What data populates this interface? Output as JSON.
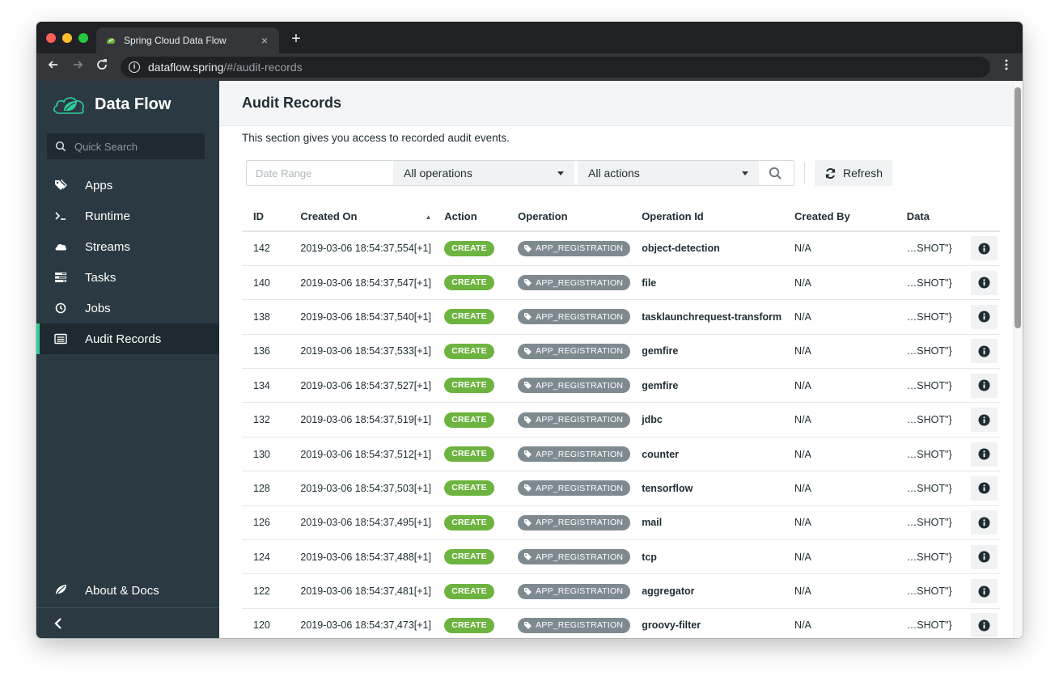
{
  "browser": {
    "tab_title": "Spring Cloud Data Flow",
    "tab_close": "×",
    "new_tab": "+",
    "url_host": "dataflow.spring",
    "url_path": "/#/audit-records",
    "icons": {
      "back": "arrow-left",
      "forward": "arrow-right",
      "reload": "reload",
      "info": "info",
      "menu": "kebab"
    }
  },
  "sidebar": {
    "brand": "Data Flow",
    "search_placeholder": "Quick Search",
    "items": [
      {
        "label": "Apps",
        "icon": "tags-icon"
      },
      {
        "label": "Runtime",
        "icon": "terminal-icon"
      },
      {
        "label": "Streams",
        "icon": "cloud-icon"
      },
      {
        "label": "Tasks",
        "icon": "tasks-icon"
      },
      {
        "label": "Jobs",
        "icon": "clock-icon"
      },
      {
        "label": "Audit Records",
        "icon": "list-icon",
        "active": true
      }
    ],
    "about": "About & Docs",
    "collapse_glyph": "‹"
  },
  "page": {
    "title": "Audit Records",
    "description": "This section gives you access to recorded audit events.",
    "filters": {
      "date_placeholder": "Date Range",
      "operations": "All operations",
      "actions": "All actions",
      "refresh": "Refresh"
    },
    "columns": [
      "ID",
      "Created On",
      "Action",
      "Operation",
      "Operation Id",
      "Created By",
      "Data"
    ],
    "rows": [
      {
        "id": "142",
        "created": "2019-03-06 18:54:37,554[+1]",
        "action": "CREATE",
        "operation": "APP_REGISTRATION",
        "op_id": "object-detection",
        "by": "N/A",
        "data": "…SHOT\"}"
      },
      {
        "id": "140",
        "created": "2019-03-06 18:54:37,547[+1]",
        "action": "CREATE",
        "operation": "APP_REGISTRATION",
        "op_id": "file",
        "by": "N/A",
        "data": "…SHOT\"}"
      },
      {
        "id": "138",
        "created": "2019-03-06 18:54:37,540[+1]",
        "action": "CREATE",
        "operation": "APP_REGISTRATION",
        "op_id": "tasklaunchrequest-transform",
        "by": "N/A",
        "data": "…SHOT\"}"
      },
      {
        "id": "136",
        "created": "2019-03-06 18:54:37,533[+1]",
        "action": "CREATE",
        "operation": "APP_REGISTRATION",
        "op_id": "gemfire",
        "by": "N/A",
        "data": "…SHOT\"}"
      },
      {
        "id": "134",
        "created": "2019-03-06 18:54:37,527[+1]",
        "action": "CREATE",
        "operation": "APP_REGISTRATION",
        "op_id": "gemfire",
        "by": "N/A",
        "data": "…SHOT\"}"
      },
      {
        "id": "132",
        "created": "2019-03-06 18:54:37,519[+1]",
        "action": "CREATE",
        "operation": "APP_REGISTRATION",
        "op_id": "jdbc",
        "by": "N/A",
        "data": "…SHOT\"}"
      },
      {
        "id": "130",
        "created": "2019-03-06 18:54:37,512[+1]",
        "action": "CREATE",
        "operation": "APP_REGISTRATION",
        "op_id": "counter",
        "by": "N/A",
        "data": "…SHOT\"}"
      },
      {
        "id": "128",
        "created": "2019-03-06 18:54:37,503[+1]",
        "action": "CREATE",
        "operation": "APP_REGISTRATION",
        "op_id": "tensorflow",
        "by": "N/A",
        "data": "…SHOT\"}"
      },
      {
        "id": "126",
        "created": "2019-03-06 18:54:37,495[+1]",
        "action": "CREATE",
        "operation": "APP_REGISTRATION",
        "op_id": "mail",
        "by": "N/A",
        "data": "…SHOT\"}"
      },
      {
        "id": "124",
        "created": "2019-03-06 18:54:37,488[+1]",
        "action": "CREATE",
        "operation": "APP_REGISTRATION",
        "op_id": "tcp",
        "by": "N/A",
        "data": "…SHOT\"}"
      },
      {
        "id": "122",
        "created": "2019-03-06 18:54:37,481[+1]",
        "action": "CREATE",
        "operation": "APP_REGISTRATION",
        "op_id": "aggregator",
        "by": "N/A",
        "data": "…SHOT\"}"
      },
      {
        "id": "120",
        "created": "2019-03-06 18:54:37,473[+1]",
        "action": "CREATE",
        "operation": "APP_REGISTRATION",
        "op_id": "groovy-filter",
        "by": "N/A",
        "data": "…SHOT\"}"
      }
    ]
  },
  "colors": {
    "sidebar_bg": "#2b3a42",
    "active_accent": "#2ecc9a",
    "create_badge": "#6db33f",
    "operation_badge": "#7f8a90",
    "link": "#2b6aa0"
  }
}
